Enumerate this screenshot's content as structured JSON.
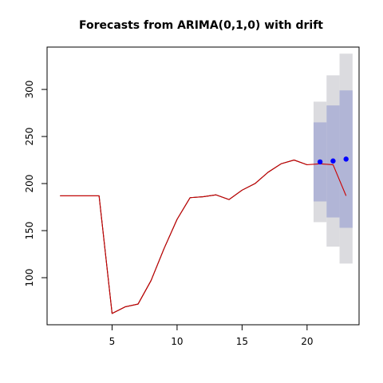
{
  "chart_data": {
    "type": "line",
    "title": "Forecasts from ARIMA(0,1,0) with drift",
    "xlabel": "",
    "ylabel": "",
    "xlim": [
      0,
      24
    ],
    "ylim": [
      50,
      345
    ],
    "x_ticks": [
      5,
      10,
      15,
      20
    ],
    "y_ticks": [
      100,
      150,
      200,
      250,
      300
    ],
    "grid": false,
    "series": [
      {
        "role": "observed",
        "color": "#000000",
        "x": [
          1,
          2,
          3,
          4,
          5,
          6,
          7,
          8,
          9,
          10,
          11,
          12,
          13,
          14,
          15,
          16,
          17,
          18,
          19,
          20
        ],
        "y": [
          187,
          187,
          187,
          187,
          62,
          69,
          72,
          97,
          131,
          162,
          185,
          186,
          188,
          183,
          193,
          200,
          212,
          221,
          225,
          220
        ]
      },
      {
        "role": "fitted",
        "color": "#cc0000",
        "x": [
          1,
          2,
          3,
          4,
          5,
          6,
          7,
          8,
          9,
          10,
          11,
          12,
          13,
          14,
          15,
          16,
          17,
          18,
          19,
          20,
          21,
          22,
          23
        ],
        "y": [
          187,
          187,
          187,
          187,
          62,
          69,
          72,
          97,
          131,
          162,
          185,
          186,
          188,
          183,
          193,
          200,
          212,
          221,
          225,
          220,
          221,
          220,
          187
        ]
      }
    ],
    "forecast": {
      "x": [
        21,
        22,
        23
      ],
      "mean": [
        223,
        224,
        226
      ],
      "lo80": [
        181,
        164,
        153
      ],
      "hi80": [
        265,
        283,
        299
      ],
      "lo95": [
        159,
        133,
        115
      ],
      "hi95": [
        287,
        315,
        338
      ],
      "point_color": "#0000ff",
      "band80_color": "#b1b5d6",
      "band95_color": "#dbdbdf"
    }
  }
}
